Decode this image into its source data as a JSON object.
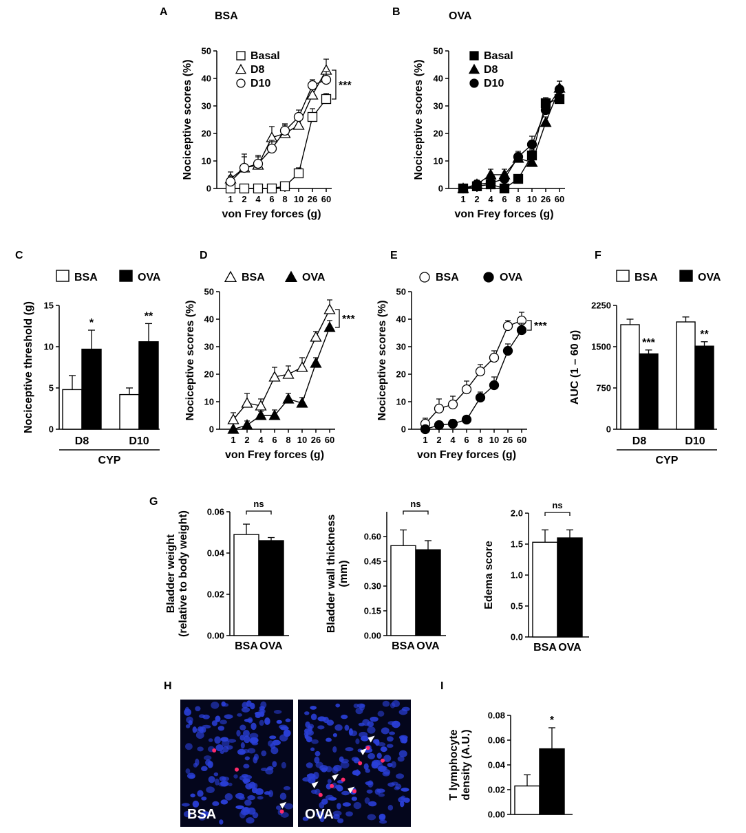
{
  "panel_labels": [
    "A",
    "B",
    "C",
    "D",
    "E",
    "F",
    "G",
    "H",
    "I"
  ],
  "colors": {
    "bsa": "#ffffff",
    "ova": "#000000",
    "stroke": "#000000",
    "tissue": "#04061c",
    "nuclei": "#2a3fd8",
    "tcell": "#ff2a6a"
  },
  "chart_data": [
    {
      "id": "A",
      "type": "line",
      "title": "BSA",
      "xlabel": "von Frey forces (g)",
      "ylabel": "Nociceptive scores (%)",
      "categories": [
        "1",
        "2",
        "4",
        "6",
        "8",
        "10",
        "26",
        "60"
      ],
      "ylim": [
        0,
        50
      ],
      "yticks": [
        "0",
        "10",
        "20",
        "30",
        "40",
        "50"
      ],
      "legend": "top-left",
      "series": [
        {
          "name": "Basal",
          "marker": "square",
          "fill": "white",
          "values": [
            0,
            0,
            0,
            0,
            0.8,
            5.5,
            26,
            32.5
          ],
          "err": [
            0,
            0,
            0,
            0,
            1,
            2,
            3,
            2
          ]
        },
        {
          "name": "D8",
          "marker": "triangle",
          "fill": "white",
          "values": [
            3.5,
            7.5,
            8.5,
            18.5,
            20,
            23,
            34,
            43
          ],
          "err": [
            2.5,
            5,
            3,
            4,
            3,
            4,
            2,
            4
          ]
        },
        {
          "name": "D10",
          "marker": "circle",
          "fill": "white",
          "values": [
            2.5,
            7.5,
            9,
            14.5,
            21,
            26,
            37.5,
            39.5
          ],
          "err": [
            2,
            4,
            3,
            3,
            2.5,
            2.5,
            2,
            3
          ]
        }
      ],
      "annotations": [
        {
          "text": "***",
          "bracket": "between-top-series"
        }
      ]
    },
    {
      "id": "B",
      "type": "line",
      "title": "OVA",
      "xlabel": "von Frey forces (g)",
      "ylabel": "Nociceptive scores (%)",
      "categories": [
        "1",
        "2",
        "4",
        "6",
        "8",
        "10",
        "26",
        "60"
      ],
      "ylim": [
        0,
        50
      ],
      "yticks": [
        "0",
        "10",
        "20",
        "30",
        "40",
        "50"
      ],
      "legend": "top-left",
      "series": [
        {
          "name": "Basal",
          "marker": "square",
          "fill": "black",
          "values": [
            0,
            0.8,
            1.5,
            0,
            3.5,
            12,
            31,
            32.5
          ],
          "err": [
            0,
            1,
            1.5,
            0,
            1,
            2,
            2,
            2
          ]
        },
        {
          "name": "D8",
          "marker": "triangle",
          "fill": "black",
          "values": [
            0,
            1.5,
            5,
            5,
            11,
            9.5,
            24,
            36.5
          ],
          "err": [
            0,
            1.5,
            2,
            2,
            2,
            2,
            2,
            2.5
          ]
        },
        {
          "name": "D10",
          "marker": "circle",
          "fill": "black",
          "values": [
            0,
            1.5,
            2,
            3.5,
            11.5,
            16,
            28.5,
            36
          ],
          "err": [
            0,
            1,
            1.5,
            1,
            2,
            3,
            2.5,
            3
          ]
        }
      ]
    },
    {
      "id": "C",
      "type": "bar",
      "ylabel": "Nociceptive threshold (g)",
      "groups": [
        "D8",
        "D10"
      ],
      "group_caption": "CYP",
      "ylim": [
        0,
        15
      ],
      "yticks": [
        "0",
        "5",
        "10",
        "15"
      ],
      "legend": "top",
      "series": [
        {
          "name": "BSA",
          "fill": "white",
          "values": [
            4.8,
            4.2
          ],
          "err": [
            1.7,
            0.8
          ]
        },
        {
          "name": "OVA",
          "fill": "black",
          "values": [
            9.7,
            10.6
          ],
          "err": [
            2.3,
            2.2
          ]
        }
      ],
      "annotations": [
        {
          "group": 0,
          "series": 1,
          "text": "*"
        },
        {
          "group": 1,
          "series": 1,
          "text": "**"
        }
      ]
    },
    {
      "id": "D",
      "type": "line",
      "xlabel": "von Frey forces (g)",
      "ylabel": "Nociceptive scores (%)",
      "categories": [
        "1",
        "2",
        "4",
        "6",
        "8",
        "10",
        "26",
        "60"
      ],
      "ylim": [
        0,
        50
      ],
      "yticks": [
        "0",
        "10",
        "20",
        "30",
        "40",
        "50"
      ],
      "legend": "top",
      "series": [
        {
          "name": "BSA",
          "marker": "triangle",
          "fill": "white",
          "values": [
            3.5,
            9.5,
            8.5,
            19,
            20,
            22.5,
            33.5,
            43.5
          ],
          "err": [
            2.5,
            3.5,
            2.5,
            3.5,
            3,
            3.5,
            2,
            3.5
          ]
        },
        {
          "name": "OVA",
          "marker": "triangle",
          "fill": "black",
          "values": [
            0,
            1.5,
            5,
            5,
            11,
            9.5,
            24,
            37
          ],
          "err": [
            0,
            1.5,
            1.5,
            2,
            2,
            2,
            2,
            2.5
          ]
        }
      ],
      "annotations": [
        {
          "text": "***",
          "bracket": "between-series-end"
        }
      ]
    },
    {
      "id": "E",
      "type": "line",
      "xlabel": "von Frey forces (g)",
      "ylabel": "Nociceptive scores (%)",
      "categories": [
        "1",
        "2",
        "4",
        "6",
        "8",
        "10",
        "26",
        "60"
      ],
      "ylim": [
        0,
        50
      ],
      "yticks": [
        "0",
        "10",
        "20",
        "30",
        "40",
        "50"
      ],
      "legend": "top",
      "series": [
        {
          "name": "BSA",
          "marker": "circle",
          "fill": "white",
          "values": [
            2,
            7.5,
            9,
            14.5,
            21,
            26,
            37.5,
            39.5
          ],
          "err": [
            2,
            3.5,
            3,
            3,
            2.5,
            2.5,
            2,
            3
          ]
        },
        {
          "name": "OVA",
          "marker": "circle",
          "fill": "black",
          "values": [
            0,
            1.5,
            2,
            3.5,
            11.5,
            16,
            28.5,
            36
          ],
          "err": [
            0,
            1,
            1.5,
            1,
            2,
            3,
            2.5,
            2.5
          ]
        }
      ],
      "annotations": [
        {
          "text": "***",
          "bracket": "between-series-end"
        }
      ]
    },
    {
      "id": "F",
      "type": "bar",
      "ylabel": "AUC (1 – 60 g)",
      "groups": [
        "D8",
        "D10"
      ],
      "group_caption": "CYP",
      "ylim": [
        0,
        2250
      ],
      "yticks": [
        "0",
        "750",
        "1500",
        "2250"
      ],
      "legend": "top",
      "series": [
        {
          "name": "BSA",
          "fill": "white",
          "values": [
            1900,
            1950
          ],
          "err": [
            100,
            90
          ]
        },
        {
          "name": "OVA",
          "fill": "black",
          "values": [
            1370,
            1510
          ],
          "err": [
            70,
            80
          ]
        }
      ],
      "annotations": [
        {
          "group": 0,
          "series": 1,
          "text": "***"
        },
        {
          "group": 1,
          "series": 1,
          "text": "**"
        }
      ]
    },
    {
      "id": "G1",
      "type": "bar",
      "ylabel": [
        "Bladder weight",
        "(relative to body weight)"
      ],
      "categories": [
        "BSA",
        "OVA"
      ],
      "fills": [
        "white",
        "black"
      ],
      "values": [
        0.049,
        0.046
      ],
      "err": [
        0.005,
        0.0015
      ],
      "ylim": [
        0,
        0.06
      ],
      "yticks": [
        "0.00",
        "0.02",
        "0.04",
        "0.06"
      ],
      "annotations": [
        {
          "text": "ns",
          "bracket": "between-bars"
        }
      ]
    },
    {
      "id": "G2",
      "type": "bar",
      "ylabel": [
        "Bladder wall thickness",
        "(mm)"
      ],
      "categories": [
        "BSA",
        "OVA"
      ],
      "fills": [
        "white",
        "black"
      ],
      "values": [
        0.545,
        0.52
      ],
      "err": [
        0.095,
        0.055
      ],
      "ylim": [
        0,
        0.75
      ],
      "yticks": [
        "0.00",
        "0.15",
        "0.30",
        "0.45",
        "0.60"
      ],
      "annotations": [
        {
          "text": "ns",
          "bracket": "between-bars"
        }
      ]
    },
    {
      "id": "G3",
      "type": "bar",
      "ylabel": [
        "Edema score"
      ],
      "categories": [
        "BSA",
        "OVA"
      ],
      "fills": [
        "white",
        "black"
      ],
      "values": [
        1.53,
        1.6
      ],
      "err": [
        0.2,
        0.13
      ],
      "ylim": [
        0,
        2.0
      ],
      "yticks": [
        "0.0",
        "0.5",
        "1.0",
        "1.5",
        "2.0"
      ],
      "annotations": [
        {
          "text": "ns",
          "bracket": "between-bars"
        }
      ]
    },
    {
      "id": "I",
      "type": "bar",
      "ylabel": [
        "T lymphocyte",
        "density (A.U.)"
      ],
      "categories": [
        "",
        ""
      ],
      "fills": [
        "white",
        "black"
      ],
      "values": [
        0.023,
        0.053
      ],
      "err": [
        0.009,
        0.017
      ],
      "ylim": [
        0,
        0.08
      ],
      "yticks": [
        "0.00",
        "0.02",
        "0.04",
        "0.06",
        "0.08"
      ],
      "annotations": [
        {
          "bar": 1,
          "text": "*"
        }
      ]
    }
  ],
  "micrographs": {
    "left_label": "BSA",
    "right_label": "OVA"
  }
}
